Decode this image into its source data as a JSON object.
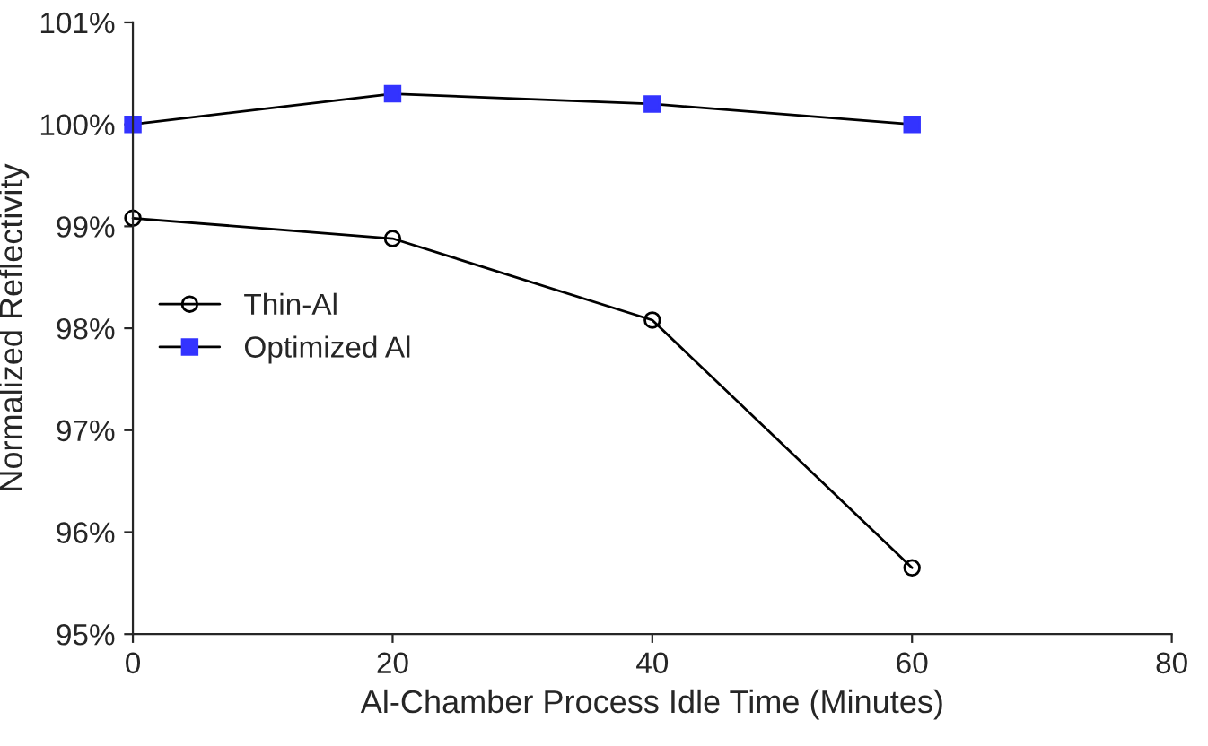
{
  "chart_data": {
    "type": "line",
    "xlabel": "Al-Chamber Process Idle Time (Minutes)",
    "ylabel": "Normalized Reflectivity",
    "x": [
      0,
      20,
      40,
      60
    ],
    "series": [
      {
        "name": "Thin-Al",
        "color": "#000000",
        "marker": "circle",
        "values": [
          99.08,
          98.88,
          98.08,
          95.65
        ]
      },
      {
        "name": "Optimized Al",
        "color": "#3333ff",
        "marker": "square",
        "values": [
          100.0,
          100.3,
          100.2,
          100.0
        ]
      }
    ],
    "xlim": [
      0,
      80
    ],
    "xticks": [
      0,
      20,
      40,
      60,
      80
    ],
    "ylim": [
      95,
      101
    ],
    "yticks": [
      {
        "value": 95,
        "label": "95%"
      },
      {
        "value": 96,
        "label": "96%"
      },
      {
        "value": 97,
        "label": "97%"
      },
      {
        "value": 98,
        "label": "98%"
      },
      {
        "value": 99,
        "label": "99%"
      },
      {
        "value": 100,
        "label": "100%"
      },
      {
        "value": 101,
        "label": "101%"
      }
    ],
    "grid": false,
    "legend": "center left",
    "line_style": "solid"
  }
}
